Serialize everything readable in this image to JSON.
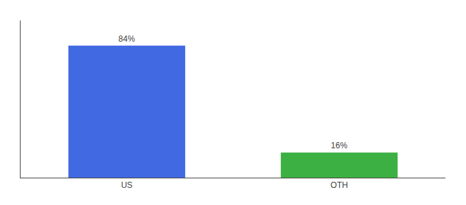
{
  "chart_data": {
    "type": "bar",
    "categories": [
      "US",
      "OTH"
    ],
    "values": [
      84,
      16
    ],
    "value_labels": [
      "84%",
      "16%"
    ],
    "colors": [
      "#4169e1",
      "#3cb043"
    ],
    "ylim": [
      0,
      100
    ],
    "data_labels": true,
    "tick_labels": "x",
    "grid": false
  }
}
